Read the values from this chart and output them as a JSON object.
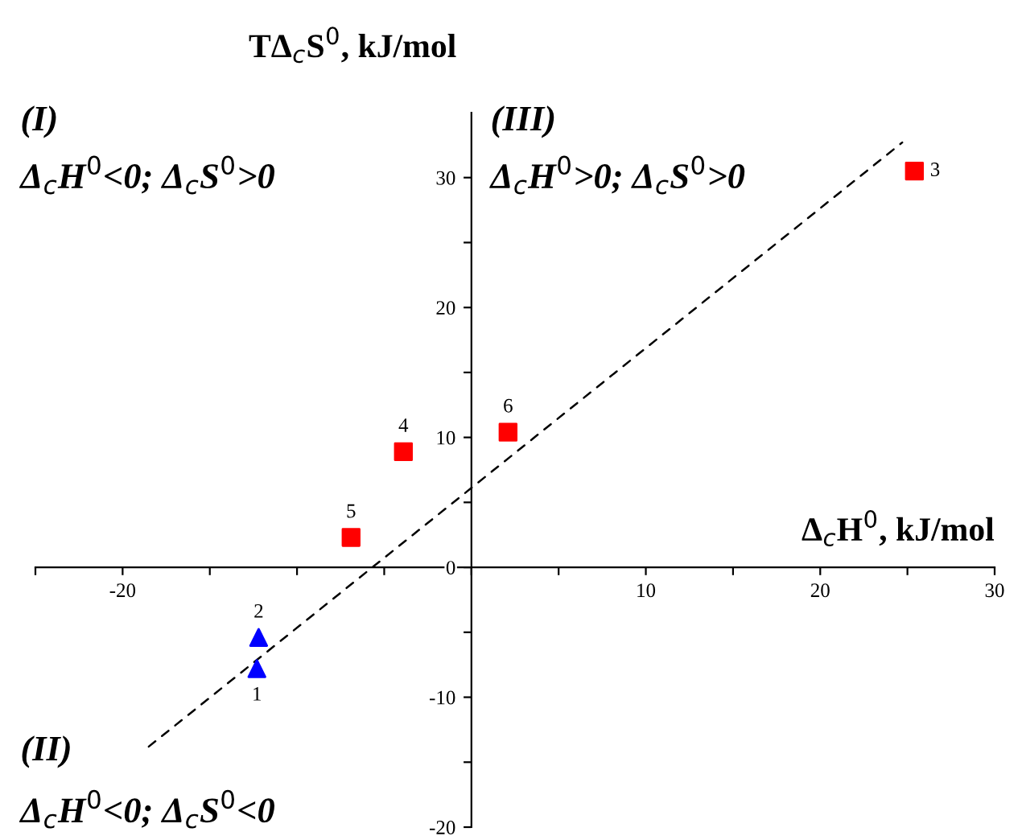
{
  "chart_data": {
    "type": "scatter",
    "xlabel": "Δ$_{c}$H$^{0}$, kJ/mol",
    "ylabel": "TΔ$_{c}$S$^{0}$, kJ/mol",
    "xlim": [
      -25,
      30
    ],
    "ylim": [
      -20,
      35
    ],
    "xticks": [
      {
        "value": -25,
        "label": null
      },
      {
        "value": -20,
        "label": "-20"
      },
      {
        "value": -15,
        "label": null
      },
      {
        "value": -10,
        "label": null
      },
      {
        "value": -5,
        "label": null
      },
      {
        "value": 0,
        "label": null
      },
      {
        "value": 5,
        "label": null
      },
      10,
      {
        "value": 15,
        "label": null
      },
      20,
      {
        "value": 25,
        "label": null
      },
      30
    ],
    "yticks": [
      -20,
      {
        "value": -15,
        "label": null
      },
      -10,
      {
        "value": -5,
        "label": null
      },
      0,
      {
        "value": 5,
        "label": null
      },
      10,
      {
        "value": 15,
        "label": null
      },
      20,
      {
        "value": 25,
        "label": null
      },
      30
    ],
    "grid": false,
    "series": [
      {
        "marker": "square",
        "color": "#ff0000",
        "x": [
          25.4,
          2.1,
          -3.9,
          -6.9
        ],
        "values": [
          30.5,
          10.4,
          8.9,
          2.3
        ]
      },
      {
        "marker": "triangle",
        "color": "#0000ff",
        "x": [
          -12.3,
          -12.2
        ],
        "values": [
          -7.8,
          -5.4
        ]
      },
      {
        "type": "line",
        "line_style": "dashed",
        "color": "#000000",
        "x": [
          -18.5,
          24.7
        ],
        "values": [
          -13.8,
          32.7
        ]
      }
    ],
    "annotations": [
      {
        "text": "3",
        "x": 25.4,
        "y": 30.5
      },
      {
        "text": "6",
        "x": 2.1,
        "y": 10.4
      },
      {
        "text": "4",
        "x": -3.9,
        "y": 8.9
      },
      {
        "text": "5",
        "x": -6.9,
        "y": 2.3
      },
      {
        "text": "2",
        "x": -12.2,
        "y": -5.4
      },
      {
        "text": "1",
        "x": -12.3,
        "y": -7.8
      },
      "(I)",
      "Δ$_{c}$H$^{0}$<0; Δ$_{c}$S$^{0}$>0",
      "(III)",
      "Δ$_{c}$H$^{0}$>0; Δ$_{c}$S$^{0}$>0",
      "(II)",
      "Δ$_{c}$H$^{0}$<0; Δ$_{c}$S$^{0}$<0"
    ]
  }
}
